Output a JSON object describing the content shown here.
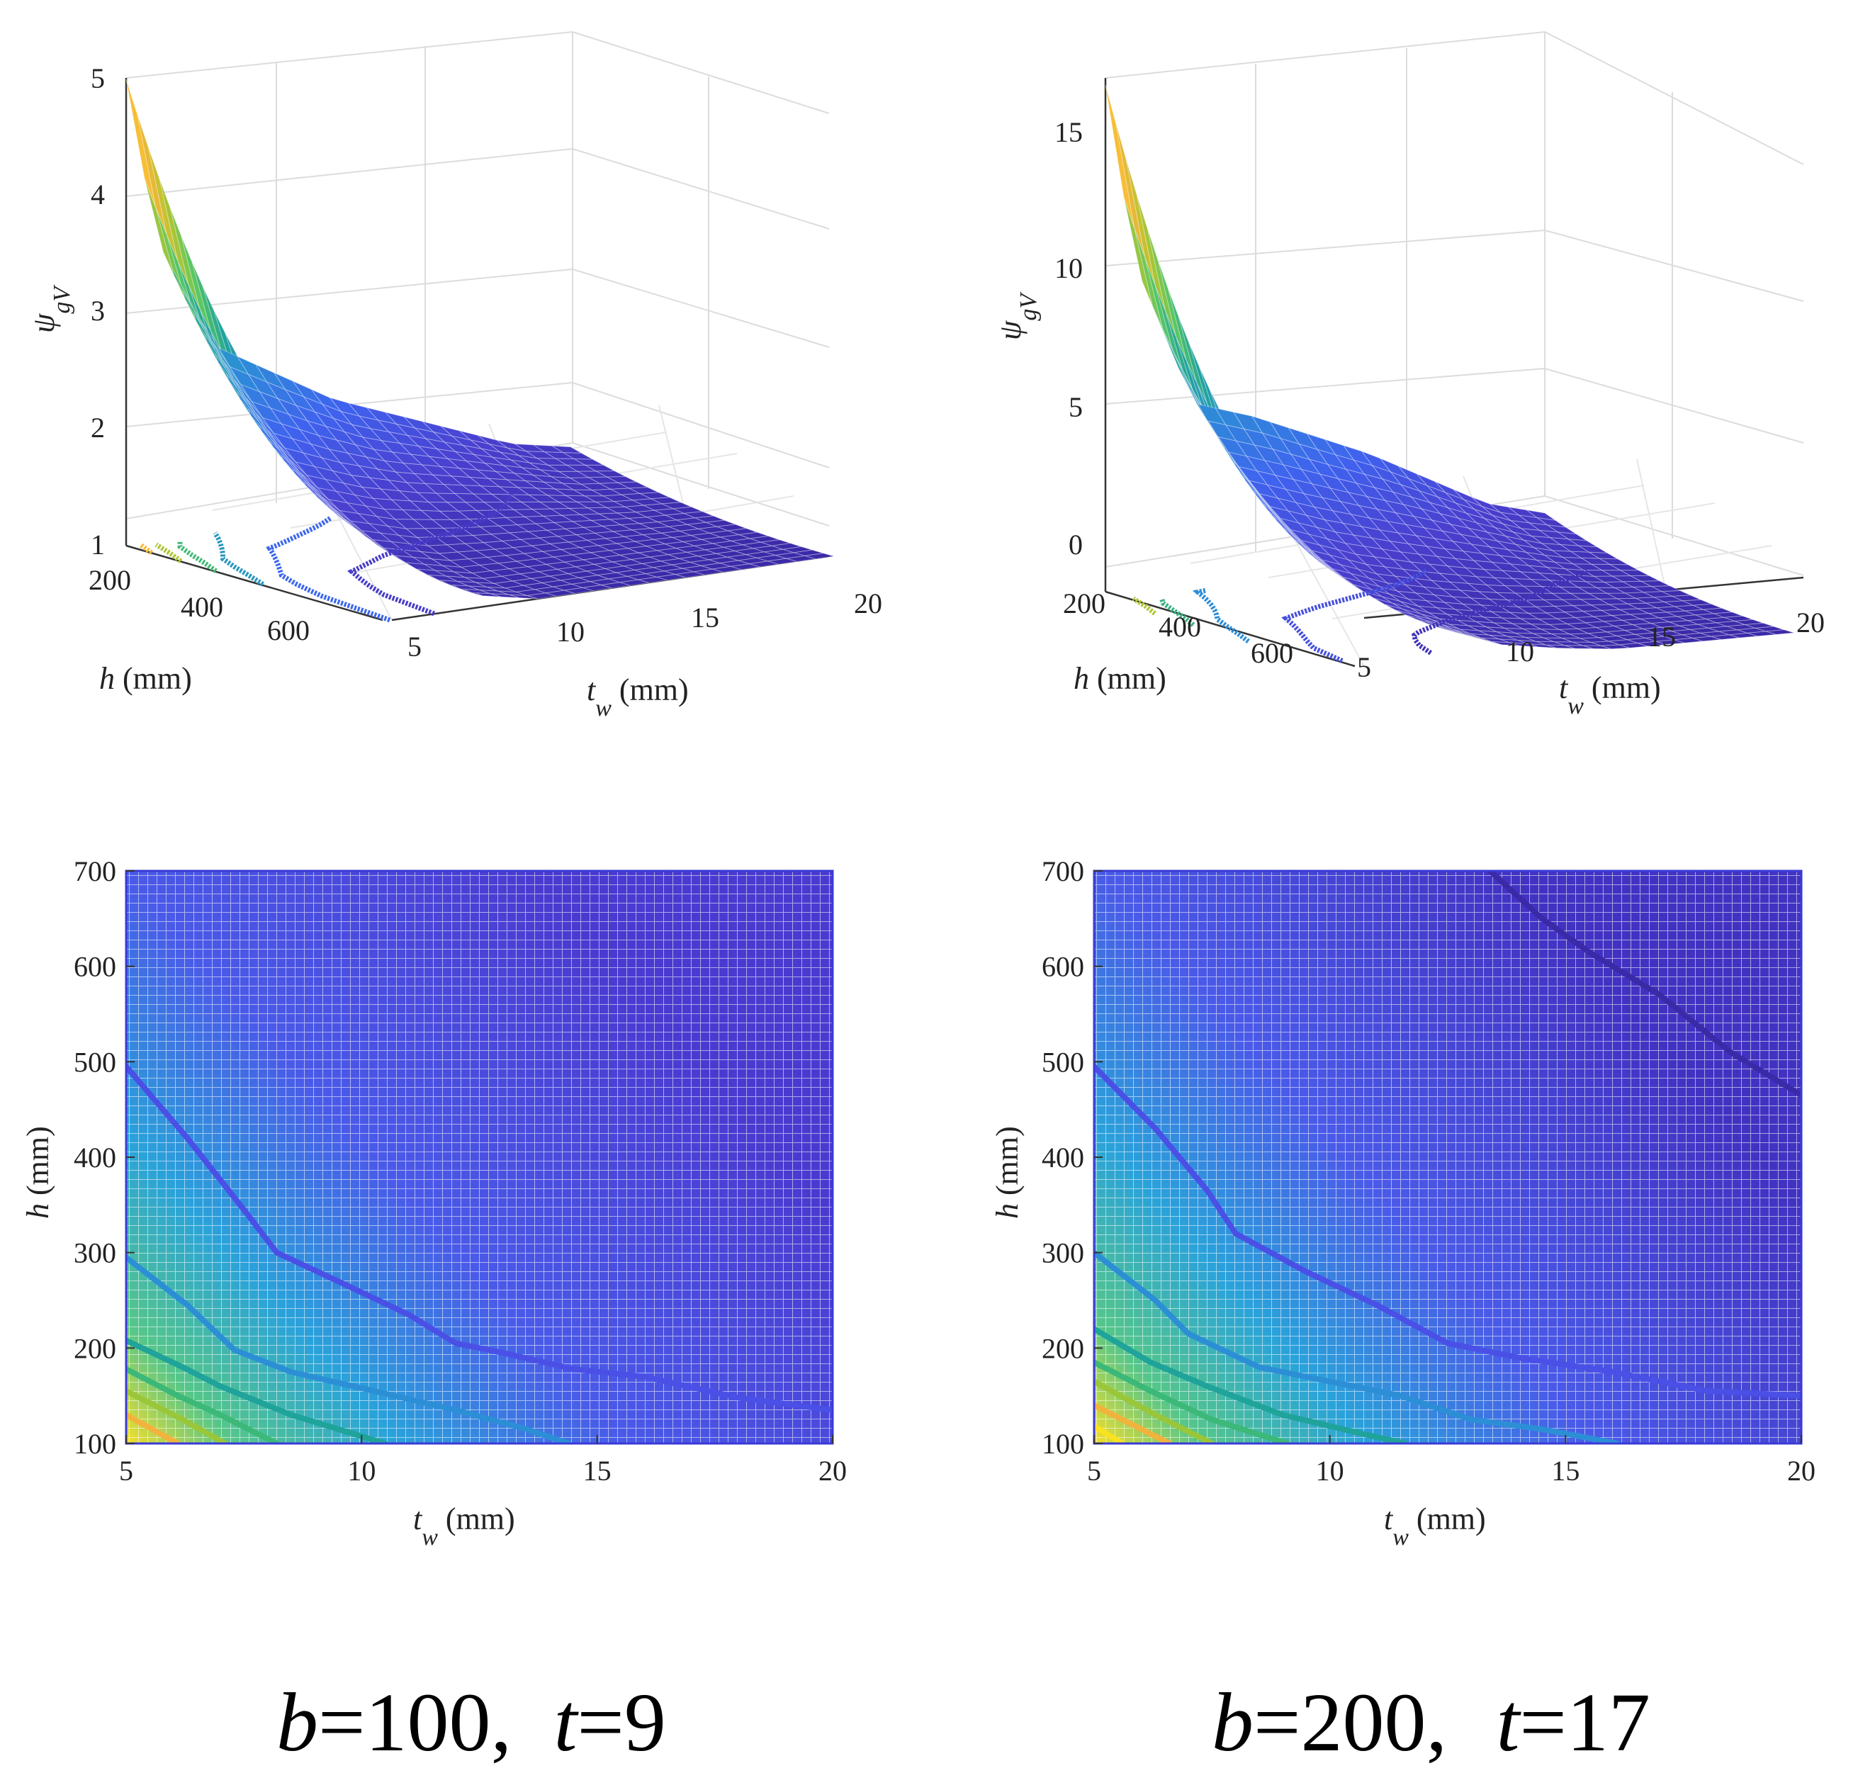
{
  "palette": [
    "#f9e21f",
    "#f7b43c",
    "#b8c52e",
    "#5bc762",
    "#1fa39a",
    "#2c8fd6",
    "#3f63ef",
    "#4a3fcf",
    "#3b2aa8"
  ],
  "chart_data": [
    {
      "type": "surface3d",
      "panel": "top-left",
      "xlabel": {
        "base": "t",
        "sub": "w",
        "rest": " (mm)"
      },
      "ylabel": {
        "base": "h",
        "rest": " (mm)"
      },
      "zlabel": {
        "base": "ψ",
        "sub": "gV"
      },
      "x_ticks": [
        "5",
        "10",
        "15",
        "20"
      ],
      "y_ticks": [
        "200",
        "400",
        "600"
      ],
      "z_ticks": [
        "1",
        "2",
        "3",
        "4",
        "5"
      ],
      "xlim": [
        5,
        20
      ],
      "ylim": [
        100,
        700
      ],
      "zlim": [
        1,
        5
      ],
      "tw": [
        5,
        6,
        8,
        10,
        12,
        14,
        16,
        18,
        20
      ],
      "psi_max_h100": [
        5.0,
        3.6,
        2.6,
        2.3,
        2.0,
        1.8,
        1.6,
        1.4,
        1.3
      ],
      "psi_min_h700": [
        2.0,
        1.5,
        1.1,
        1.0,
        1.0,
        1.0,
        1.0,
        1.0,
        1.0
      ]
    },
    {
      "type": "surface3d",
      "panel": "top-right",
      "xlabel": {
        "base": "t",
        "sub": "w",
        "rest": " (mm)"
      },
      "ylabel": {
        "base": "h",
        "rest": " (mm)"
      },
      "zlabel": {
        "base": "ψ",
        "sub": "gV"
      },
      "x_ticks": [
        "5",
        "10",
        "15",
        "20"
      ],
      "y_ticks": [
        "200",
        "400",
        "600"
      ],
      "z_ticks": [
        "0",
        "5",
        "10",
        "15"
      ],
      "xlim": [
        5,
        20
      ],
      "ylim": [
        100,
        700
      ],
      "zlim": [
        0,
        17
      ],
      "tw": [
        5,
        6,
        8,
        10,
        12,
        14,
        16,
        18,
        20
      ],
      "psi_max_h100": [
        17.0,
        11.0,
        6.2,
        5.6,
        4.8,
        4.0,
        3.0,
        2.0,
        1.5
      ],
      "psi_min_h700": [
        4.0,
        2.5,
        1.2,
        0.5,
        0.2,
        0.0,
        0.0,
        0.0,
        0.0
      ]
    },
    {
      "type": "contour",
      "panel": "bottom-left",
      "xlabel": {
        "base": "t",
        "sub": "w",
        "rest": " (mm)"
      },
      "ylabel": {
        "base": "h",
        "rest": " (mm)"
      },
      "x_ticks": [
        "5",
        "10",
        "15",
        "20"
      ],
      "y_ticks": [
        "100",
        "200",
        "300",
        "400",
        "500",
        "600",
        "700"
      ],
      "xlim": [
        5,
        20
      ],
      "ylim": [
        100,
        700
      ],
      "contours": [
        {
          "level": "c1",
          "color": "#4a50e6",
          "points": [
            [
              5,
              495
            ],
            [
              6.3,
              420
            ],
            [
              7.5,
              345
            ],
            [
              8.2,
              300
            ],
            [
              9.5,
              270
            ],
            [
              11,
              235
            ],
            [
              12,
              205
            ],
            [
              13,
              195
            ],
            [
              14.5,
              178
            ],
            [
              16,
              170
            ],
            [
              18,
              148
            ],
            [
              20,
              135
            ]
          ]
        },
        {
          "level": "c2",
          "color": "#2c8fd6",
          "points": [
            [
              5,
              295
            ],
            [
              6.3,
              245
            ],
            [
              7.3,
              198
            ],
            [
              8.5,
              175
            ],
            [
              10,
              158
            ],
            [
              12,
              135
            ],
            [
              13.5,
              115
            ],
            [
              14.4,
              100
            ]
          ]
        },
        {
          "level": "c3",
          "color": "#1fa39a",
          "points": [
            [
              5,
              208
            ],
            [
              6.2,
              180
            ],
            [
              7,
              160
            ],
            [
              8.5,
              130
            ],
            [
              10.5,
              100
            ]
          ]
        },
        {
          "level": "c4",
          "color": "#3cb878",
          "points": [
            [
              5,
              178
            ],
            [
              6.1,
              150
            ],
            [
              7,
              130
            ],
            [
              8.2,
              100
            ]
          ]
        },
        {
          "level": "c5",
          "color": "#9ac63a",
          "points": [
            [
              5,
              155
            ],
            [
              6.2,
              125
            ],
            [
              7.1,
              100
            ]
          ]
        },
        {
          "level": "c6",
          "color": "#f2b33d",
          "points": [
            [
              5,
              130
            ],
            [
              6.1,
              100
            ]
          ]
        }
      ]
    },
    {
      "type": "contour",
      "panel": "bottom-right",
      "xlabel": {
        "base": "t",
        "sub": "w",
        "rest": " (mm)"
      },
      "ylabel": {
        "base": "h",
        "rest": " (mm)"
      },
      "x_ticks": [
        "5",
        "10",
        "15",
        "20"
      ],
      "y_ticks": [
        "100",
        "200",
        "300",
        "400",
        "500",
        "600",
        "700"
      ],
      "xlim": [
        5,
        20
      ],
      "ylim": [
        100,
        700
      ],
      "contours": [
        {
          "level": "c0",
          "color": "#3b2aa8",
          "points": [
            [
              13.4,
              700
            ],
            [
              14.5,
              650
            ],
            [
              15.5,
              615
            ],
            [
              17,
              570
            ],
            [
              18.5,
              510
            ],
            [
              20,
              465
            ]
          ]
        },
        {
          "level": "c1",
          "color": "#4a50e6",
          "points": [
            [
              5,
              495
            ],
            [
              6.3,
              430
            ],
            [
              7.4,
              365
            ],
            [
              8,
              320
            ],
            [
              9.5,
              280
            ],
            [
              11,
              245
            ],
            [
              12.5,
              205
            ],
            [
              14,
              190
            ],
            [
              16,
              175
            ],
            [
              18,
              155
            ],
            [
              20,
              150
            ]
          ]
        },
        {
          "level": "c2",
          "color": "#2c8fd6",
          "points": [
            [
              5,
              300
            ],
            [
              6.3,
              250
            ],
            [
              7,
              215
            ],
            [
              8.5,
              180
            ],
            [
              10,
              165
            ],
            [
              11.5,
              150
            ],
            [
              13,
              125
            ],
            [
              14.5,
              115
            ],
            [
              16.1,
              100
            ]
          ]
        },
        {
          "level": "c3",
          "color": "#1fa39a",
          "points": [
            [
              5,
              220
            ],
            [
              6.2,
              185
            ],
            [
              7.4,
              160
            ],
            [
              9,
              130
            ],
            [
              10.7,
              110
            ],
            [
              11.6,
              100
            ]
          ]
        },
        {
          "level": "c4",
          "color": "#3cb878",
          "points": [
            [
              5,
              185
            ],
            [
              6.2,
              155
            ],
            [
              7.5,
              125
            ],
            [
              9.1,
              100
            ]
          ]
        },
        {
          "level": "c5",
          "color": "#9ac63a",
          "points": [
            [
              5,
              165
            ],
            [
              6.3,
              130
            ],
            [
              7.5,
              100
            ]
          ]
        },
        {
          "level": "c6",
          "color": "#f2b33d",
          "points": [
            [
              5,
              140
            ],
            [
              5.8,
              120
            ],
            [
              6.6,
              100
            ]
          ]
        },
        {
          "level": "c7",
          "color": "#f9e21f",
          "points": [
            [
              5,
              118
            ],
            [
              5.6,
              100
            ]
          ]
        }
      ]
    }
  ],
  "captions": [
    {
      "b_var": "b",
      "b_val": "=100",
      "sep": ",  ",
      "t_var": "t",
      "t_val": "=9"
    },
    {
      "b_var": "b",
      "b_val": "=200",
      "sep": ", ",
      "t_var": "t",
      "t_val": "=17"
    }
  ]
}
